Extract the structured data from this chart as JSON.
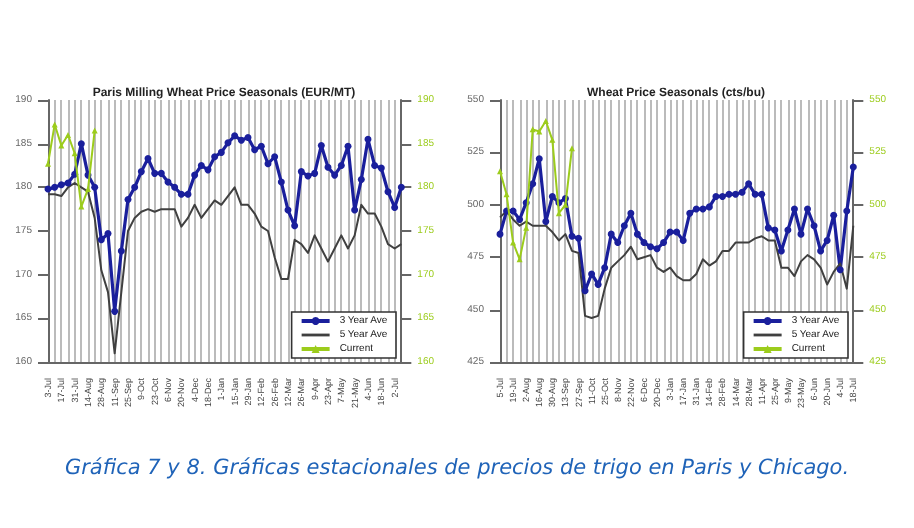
{
  "chart_data": [
    {
      "type": "line",
      "title": "Paris Milling Wheat Price Seasonals (EUR/MT)",
      "categories": [
        "3-Jul",
        null,
        "17-Jul",
        null,
        "31-Jul",
        null,
        "14-Aug",
        null,
        "28-Aug",
        null,
        "11-Sep",
        null,
        "25-Sep",
        null,
        "9-Oct",
        null,
        "23-Oct",
        null,
        "6-Nov",
        null,
        "20-Nov",
        null,
        "4-Dec",
        null,
        "18-Dec",
        null,
        "1-Jan",
        null,
        "15-Jan",
        null,
        "29-Jan",
        null,
        "12-Feb",
        null,
        "26-Feb",
        null,
        "12-Mar",
        null,
        "26-Mar",
        null,
        "9-Apr",
        null,
        "23-Apr",
        null,
        "7-May",
        null,
        "21-May",
        null,
        "4-Jun",
        null,
        "18-Jun",
        null,
        "2-Jul",
        null
      ],
      "series": [
        {
          "name": "3 Year Ave",
          "color": "#1a1f9c",
          "marker": "circle",
          "values": [
            179.8,
            180,
            180.3,
            180.5,
            181.5,
            185,
            181.4,
            180,
            174,
            174.7,
            165.8,
            172.7,
            178.6,
            180,
            181.8,
            183.3,
            181.6,
            181.6,
            180.6,
            180,
            179.2,
            179.2,
            181.4,
            182.5,
            182,
            183.5,
            184,
            185.1,
            185.9,
            185.4,
            185.7,
            184.3,
            184.7,
            182.7,
            183.5,
            180.6,
            177.4,
            175.6,
            181.8,
            181.3,
            181.6,
            184.8,
            182.3,
            181.4,
            182.5,
            184.7,
            177.4,
            180.9,
            185.5,
            182.5,
            182.2,
            179.5,
            177.7,
            180
          ]
        },
        {
          "name": "5 Year Ave",
          "color": "#404040",
          "marker": "none",
          "values": [
            179.2,
            179.2,
            179,
            180,
            180.5,
            180,
            179.5,
            176.5,
            170.5,
            168,
            161,
            168,
            175,
            176.5,
            177.2,
            177.5,
            177.2,
            177.5,
            177.5,
            177.5,
            175.5,
            176.5,
            178,
            176.5,
            177.5,
            178.5,
            178,
            179,
            180,
            178,
            178,
            177,
            175.5,
            175,
            172,
            169.5,
            169.5,
            174,
            173.5,
            172.5,
            174.5,
            173,
            171.5,
            173,
            174.5,
            173,
            174.5,
            178,
            177,
            177,
            175.5,
            173.5,
            173,
            173.5
          ]
        },
        {
          "name": "Current",
          "color": "#9ccc1c",
          "marker": "triangle",
          "axis": "y2",
          "values": [
            182.7,
            187.2,
            184.8,
            186,
            183.9,
            177.8,
            179.8,
            186.5,
            null,
            null,
            null,
            null,
            null,
            null,
            null,
            null,
            null,
            null,
            null,
            null,
            null,
            null,
            null,
            null,
            null,
            null,
            null,
            null,
            null,
            null,
            null,
            null,
            null,
            null,
            null,
            null,
            null,
            null,
            null,
            null,
            null,
            null,
            null,
            null,
            null,
            null,
            null,
            null,
            null,
            null,
            null,
            null,
            null,
            null
          ]
        }
      ],
      "ylim": [
        160,
        190
      ],
      "yticks": [
        160,
        165,
        170,
        175,
        180,
        185,
        190
      ],
      "y2lim": [
        160,
        190
      ],
      "y2ticks": [
        160,
        165,
        170,
        175,
        180,
        185,
        190
      ],
      "grid": "x",
      "legend": "bottom right",
      "annotations": [
        "Gráfica 7 y 8. Gráficas estacionales de precios de trigo en Paris y Chicago."
      ]
    },
    {
      "type": "line",
      "title": "Wheat Price Seasonals (cts/bu)",
      "categories": [
        "5-Jul",
        null,
        "19-Jul",
        null,
        "2-Aug",
        null,
        "16-Aug",
        null,
        "30-Aug",
        null,
        "13-Sep",
        null,
        "27-Sep",
        null,
        "11-Oct",
        null,
        "25-Oct",
        null,
        "8-Nov",
        null,
        "22-Nov",
        null,
        "6-Dec",
        null,
        "20-Dec",
        null,
        "3-Jan",
        null,
        "17-Jan",
        null,
        "31-Jan",
        null,
        "14-Feb",
        null,
        "28-Feb",
        null,
        "14-Mar",
        null,
        "28-Mar",
        null,
        "11-Apr",
        null,
        "25-Apr",
        null,
        "9-May",
        null,
        "23-May",
        null,
        "6-Jun",
        null,
        "20-Jun",
        null,
        "4-Jul",
        null,
        "18-Jul"
      ],
      "series": [
        {
          "name": "3 Year Ave",
          "color": "#1a1f9c",
          "marker": "circle",
          "values": [
            486,
            497,
            497,
            493,
            501,
            510,
            522,
            492,
            504,
            501,
            503,
            485,
            484,
            459,
            467,
            462,
            470,
            486,
            482,
            490,
            496,
            486,
            482,
            480,
            479,
            482,
            487,
            487,
            483,
            496,
            498,
            498,
            499,
            504,
            504,
            505,
            505,
            506,
            510,
            505,
            505,
            489,
            488,
            478,
            488,
            498,
            486,
            498,
            490,
            478,
            483,
            495,
            469,
            497,
            518
          ]
        },
        {
          "name": "5 Year Ave",
          "color": "#404040",
          "marker": "none",
          "values": [
            494,
            497,
            493,
            490,
            492,
            490,
            490,
            490,
            487,
            483,
            486,
            478,
            477,
            447,
            446,
            447,
            460,
            470,
            473,
            476,
            480,
            474,
            475,
            476,
            470,
            468,
            470,
            466,
            464,
            464,
            467,
            474,
            471,
            473,
            478,
            478,
            482,
            482,
            482,
            484,
            485,
            483,
            483,
            470,
            470,
            466,
            473,
            476,
            474,
            470,
            462,
            468,
            472,
            460,
            490
          ]
        },
        {
          "name": "Current",
          "color": "#9ccc1c",
          "marker": "triangle",
          "axis": "y2",
          "values": [
            516,
            505,
            482,
            474,
            489,
            536,
            535,
            540,
            531,
            496,
            500,
            527,
            null,
            null,
            null,
            null,
            null,
            null,
            null,
            null,
            null,
            null,
            null,
            null,
            null,
            null,
            null,
            null,
            null,
            null,
            null,
            null,
            null,
            null,
            null,
            null,
            null,
            null,
            null,
            null,
            null,
            null,
            null,
            null,
            null,
            null,
            null,
            null,
            null,
            null,
            null,
            null,
            null,
            null,
            null
          ]
        }
      ],
      "ylim": [
        425,
        550
      ],
      "yticks": [
        425,
        450,
        475,
        500,
        525,
        550
      ],
      "y2lim": [
        425,
        550
      ],
      "y2ticks": [
        425,
        450,
        475,
        500,
        525,
        550
      ],
      "grid": "x",
      "legend": "bottom right"
    }
  ]
}
